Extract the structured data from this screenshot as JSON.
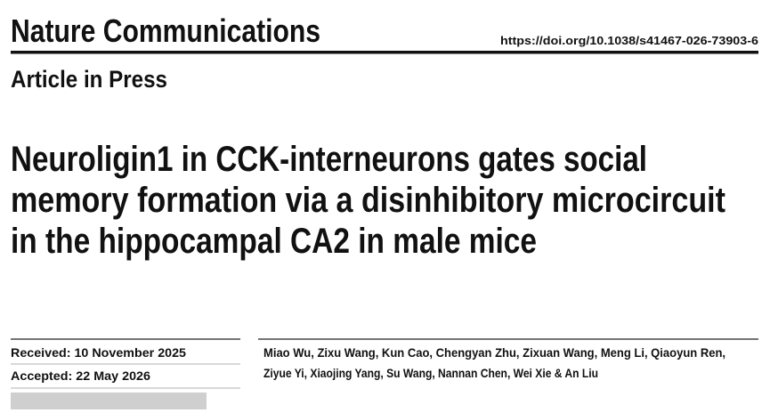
{
  "header": {
    "journal": "Nature Communications",
    "doi": "https://doi.org/10.1038/s41467-026-73903-6",
    "status": "Article in Press"
  },
  "title_lines": [
    "Neuroligin1 in CCK-interneurons gates social",
    "memory formation via a disinhibitory microcircuit",
    "in the hippocampal CA2 in male mice"
  ],
  "dates": {
    "received": "Received: 10 November 2025",
    "accepted": "Accepted: 22 May 2026"
  },
  "author_lines": [
    "Miao Wu, Zixu Wang, Kun Cao, Chengyan Zhu, Zixuan Wang, Meng Li, Qiaoyun Ren,",
    "Ziyue Yi, Xiaojing Yang, Su Wang, Nannan Chen, Wei Xie & An Liu"
  ]
}
